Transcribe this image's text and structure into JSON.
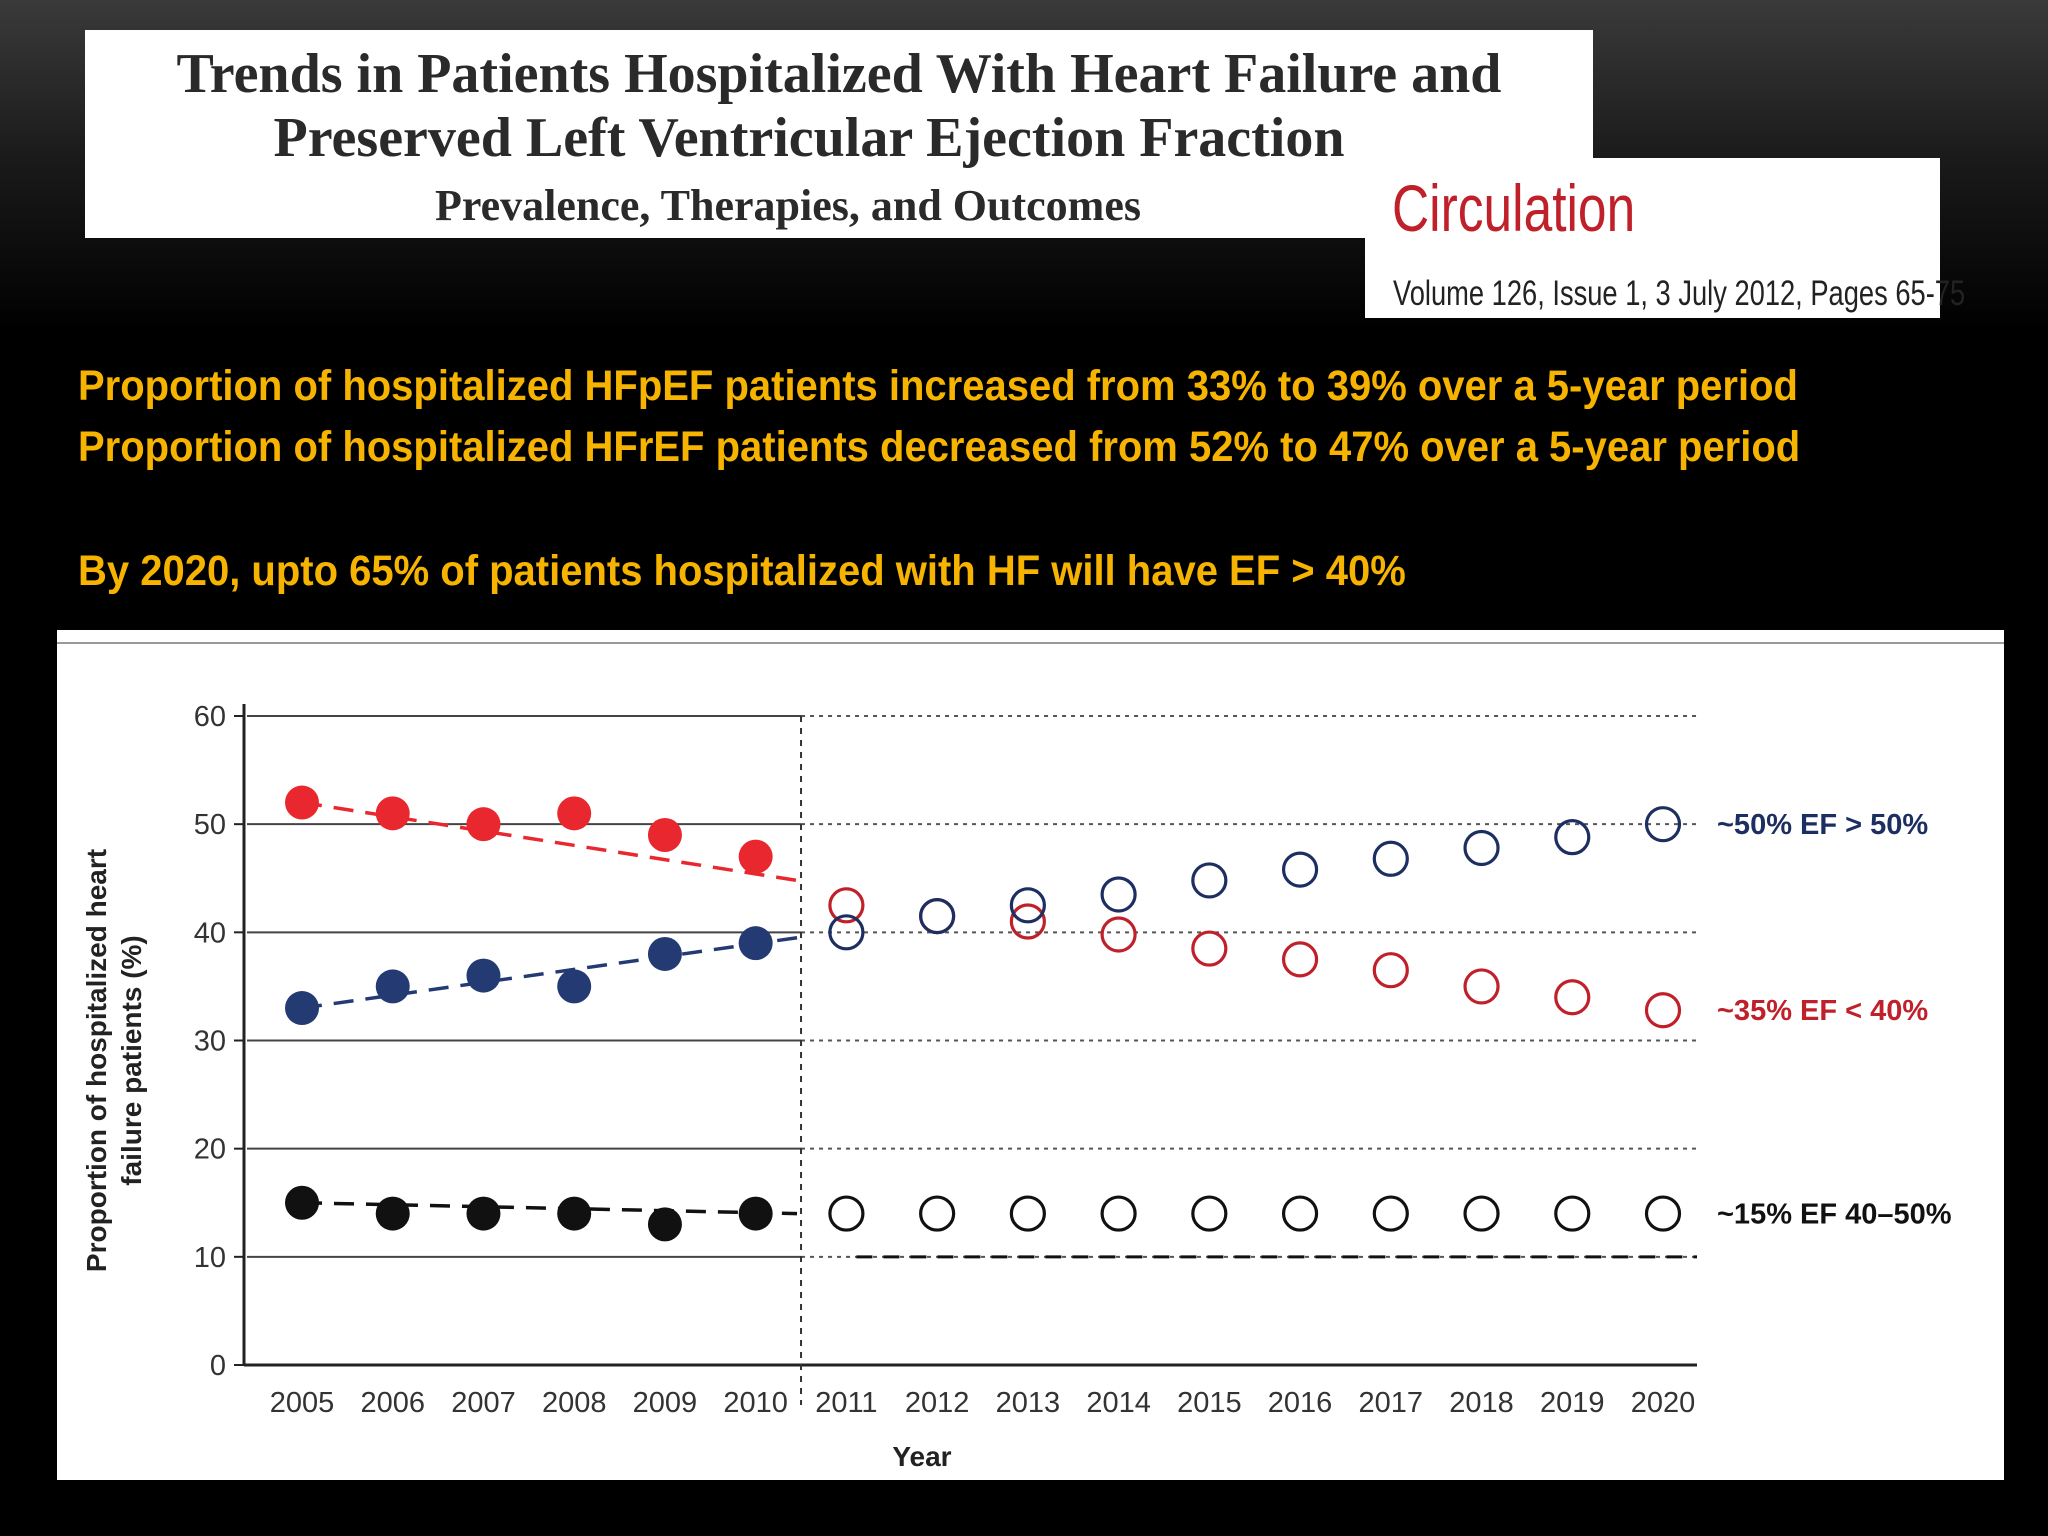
{
  "paper": {
    "title_line1": "Trends in Patients Hospitalized With Heart Failure and",
    "title_line2": "Preserved Left Ventricular Ejection Fraction",
    "subtitle": "Prevalence, Therapies, and Outcomes"
  },
  "journal": {
    "name": "Circulation",
    "citation": "Volume 126, Issue 1, 3 July 2012, Pages 65-75",
    "color": "#c0202a"
  },
  "headlines": [
    "Proportion of hospitalized HFpEF patients increased from 33% to 39% over a 5-year period",
    "Proportion of hospitalized HFrEF patients decreased from 52% to 47% over a 5-year period",
    "By 2020, upto 65% of patients hospitalized with HF will have EF > 40%"
  ],
  "headline_color": "#f6b400",
  "chart_data": {
    "type": "scatter",
    "xlabel": "Year",
    "ylabel": "Proportion of hospitalized heart failure patients (%)",
    "ylim": [
      0,
      60
    ],
    "yticks": [
      0,
      10,
      20,
      30,
      40,
      50,
      60
    ],
    "x": [
      "2005",
      "2006",
      "2007",
      "2008",
      "2009",
      "2010",
      "2011",
      "2012",
      "2013",
      "2014",
      "2015",
      "2016",
      "2017",
      "2018",
      "2019",
      "2020"
    ],
    "observed_years": [
      "2005",
      "2006",
      "2007",
      "2008",
      "2009",
      "2010"
    ],
    "projected_years": [
      "2011",
      "2012",
      "2013",
      "2014",
      "2015",
      "2016",
      "2017",
      "2018",
      "2019",
      "2020"
    ],
    "grid": true,
    "series": [
      {
        "key": "ef_lt_40",
        "color": "#e8282e",
        "projected_color": "#c0202a",
        "observed": [
          52,
          51,
          50,
          51,
          49,
          47
        ],
        "projected": [
          42.5,
          41.5,
          41,
          39.8,
          38.5,
          37.5,
          36.5,
          35,
          34,
          32.8
        ],
        "trend": [
          52,
          44.8
        ],
        "annotation": "~35% EF < 40%"
      },
      {
        "key": "ef_gt_50",
        "color": "#233a72",
        "projected_color": "#1d2f60",
        "observed": [
          33,
          35,
          36,
          35,
          38,
          39
        ],
        "projected": [
          40,
          41.5,
          42.5,
          43.5,
          44.8,
          45.8,
          46.8,
          47.8,
          48.8,
          50
        ],
        "trend": [
          33,
          39.5
        ],
        "annotation": "~50% EF > 50%"
      },
      {
        "key": "ef_40_50",
        "color": "#111111",
        "projected_color": "#111111",
        "observed": [
          15,
          14,
          14,
          14,
          13,
          14
        ],
        "projected": [
          14,
          14,
          14,
          14,
          14,
          14,
          14,
          14,
          14,
          14
        ],
        "trend": [
          15,
          14
        ],
        "annotation": "~15% EF 40–50%"
      }
    ]
  }
}
